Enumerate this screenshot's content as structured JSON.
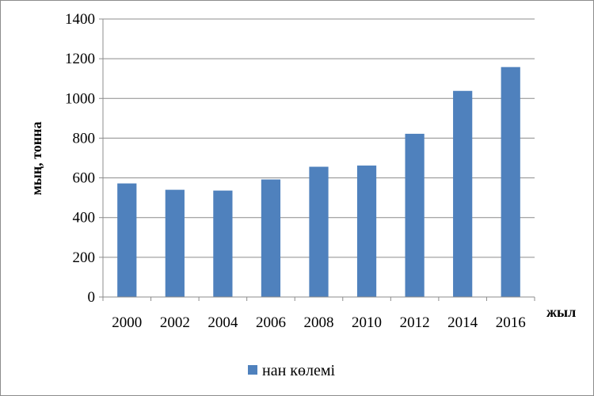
{
  "chart_data": {
    "type": "bar",
    "categories": [
      "2000",
      "2002",
      "2004",
      "2006",
      "2008",
      "2010",
      "2012",
      "2014",
      "2016"
    ],
    "series": [
      {
        "name": "нан көлемі",
        "color": "#4f81bd",
        "values": [
          572,
          540,
          536,
          592,
          656,
          662,
          822,
          1038,
          1158
        ]
      }
    ],
    "xlabel": "жыл",
    "ylabel": "мың, тонна",
    "ylim": [
      0,
      1400
    ],
    "yticks": [
      0,
      200,
      400,
      600,
      800,
      1000,
      1200,
      1400
    ],
    "grid": true,
    "legend": "bottom"
  }
}
